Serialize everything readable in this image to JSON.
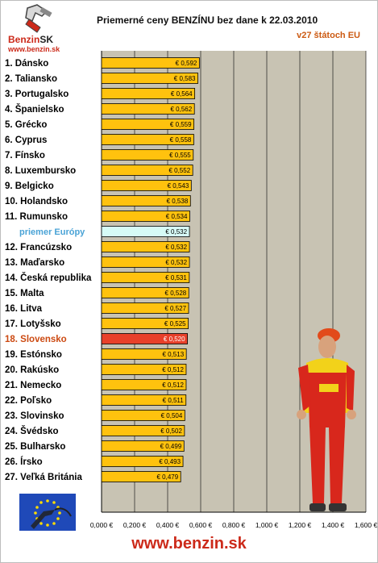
{
  "header": {
    "title": "Priemerné ceny BENZÍNU bez dane k 22.03.2010",
    "subtitle": "v27 štátoch EU"
  },
  "logo": {
    "brand": "Benzin",
    "brand_suffix": "SK",
    "url": "www.benzin.sk"
  },
  "footer": {
    "url": "www.benzin.sk"
  },
  "colors": {
    "bar": "#ffc20e",
    "avg_bar": "#d6fbf6",
    "sk_bar": "#e8402a",
    "plot_bg": "#c8c3b3"
  },
  "chart_data": {
    "type": "bar",
    "orientation": "horizontal",
    "title": "Priemerné ceny BENZÍNU bez dane k 22.03.2010",
    "subtitle": "v27 štátoch EU",
    "categories": [
      "1. Dánsko",
      "2. Taliansko",
      "3. Portugalsko",
      "4. Španielsko",
      "5. Grécko",
      "6. Cyprus",
      "7. Fínsko",
      "8. Luxembursko",
      "9. Belgicko",
      "10. Holandsko",
      "11. Rumunsko",
      "priemer Európy",
      "12. Francúzsko",
      "13. Maďarsko",
      "14. Česká republika",
      "15. Malta",
      "16. Litva",
      "17. Lotyšsko",
      "18. Slovensko",
      "19. Estónsko",
      "20. Rakúsko",
      "21. Nemecko",
      "22. Poľsko",
      "23. Slovinsko",
      "24. Švédsko",
      "25. Bulharsko",
      "26. Írsko",
      "27. Veľká Británia"
    ],
    "values": [
      0.592,
      0.583,
      0.564,
      0.562,
      0.559,
      0.558,
      0.555,
      0.552,
      0.543,
      0.538,
      0.534,
      0.532,
      0.532,
      0.532,
      0.531,
      0.528,
      0.527,
      0.525,
      0.52,
      0.513,
      0.512,
      0.512,
      0.511,
      0.504,
      0.502,
      0.499,
      0.493,
      0.479
    ],
    "value_labels": [
      "€ 0,592",
      "€ 0,583",
      "€ 0,564",
      "€ 0,562",
      "€ 0,559",
      "€ 0,558",
      "€ 0,555",
      "€ 0,552",
      "€ 0,543",
      "€ 0,538",
      "€ 0,534",
      "€ 0,532",
      "€ 0,532",
      "€ 0,532",
      "€ 0,531",
      "€ 0,528",
      "€ 0,527",
      "€ 0,525",
      "€ 0,520",
      "€ 0,513",
      "€ 0,512",
      "€ 0,512",
      "€ 0,511",
      "€ 0,504",
      "€ 0,502",
      "€ 0,499",
      "€ 0,493",
      "€ 0,479"
    ],
    "highlight": {
      "average": "priemer Európy",
      "country": "18. Slovensko"
    },
    "xlim": [
      0,
      1.6
    ],
    "x_ticks": [
      0,
      0.2,
      0.4,
      0.6,
      0.8,
      1.0,
      1.2,
      1.4,
      1.6
    ],
    "x_tick_labels": [
      "0,000 €",
      "0,200 €",
      "0,400 €",
      "0,600 €",
      "0,800 €",
      "1,000 €",
      "1,200 €",
      "1,400 €",
      "1,600 €"
    ],
    "grid": true
  }
}
